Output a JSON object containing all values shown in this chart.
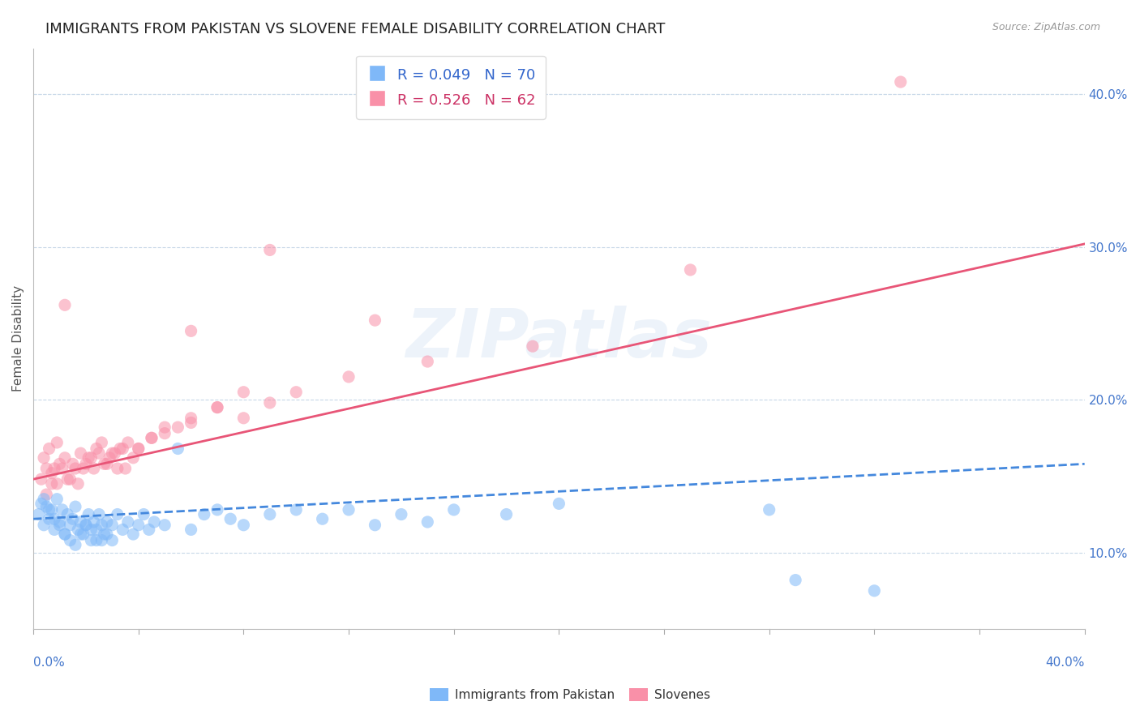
{
  "title": "IMMIGRANTS FROM PAKISTAN VS SLOVENE FEMALE DISABILITY CORRELATION CHART",
  "source": "Source: ZipAtlas.com",
  "ylabel": "Female Disability",
  "xlim": [
    0.0,
    0.4
  ],
  "ylim": [
    0.05,
    0.43
  ],
  "yticks": [
    0.1,
    0.2,
    0.3,
    0.4
  ],
  "ytick_labels": [
    "10.0%",
    "20.0%",
    "30.0%",
    "40.0%"
  ],
  "blue_color": "#7fb8f8",
  "pink_color": "#f990a8",
  "blue_r": 0.049,
  "blue_n": 70,
  "pink_r": 0.526,
  "pink_n": 62,
  "legend_label_blue": "Immigrants from Pakistan",
  "legend_label_pink": "Slovenes",
  "watermark": "ZIPatlas",
  "title_fontsize": 13,
  "axis_label_fontsize": 11,
  "tick_fontsize": 11,
  "blue_scatter_x": [
    0.002,
    0.003,
    0.004,
    0.005,
    0.006,
    0.007,
    0.008,
    0.009,
    0.01,
    0.011,
    0.012,
    0.013,
    0.014,
    0.015,
    0.016,
    0.017,
    0.018,
    0.019,
    0.02,
    0.021,
    0.022,
    0.023,
    0.024,
    0.025,
    0.026,
    0.027,
    0.028,
    0.03,
    0.032,
    0.034,
    0.036,
    0.038,
    0.04,
    0.042,
    0.044,
    0.046,
    0.05,
    0.055,
    0.06,
    0.065,
    0.07,
    0.075,
    0.08,
    0.09,
    0.1,
    0.11,
    0.12,
    0.13,
    0.14,
    0.15,
    0.004,
    0.006,
    0.008,
    0.01,
    0.012,
    0.014,
    0.016,
    0.018,
    0.02,
    0.022,
    0.024,
    0.026,
    0.028,
    0.03,
    0.16,
    0.18,
    0.2,
    0.28,
    0.29,
    0.32
  ],
  "blue_scatter_y": [
    0.125,
    0.132,
    0.118,
    0.13,
    0.122,
    0.128,
    0.115,
    0.135,
    0.12,
    0.128,
    0.112,
    0.125,
    0.118,
    0.122,
    0.13,
    0.115,
    0.12,
    0.112,
    0.118,
    0.125,
    0.115,
    0.12,
    0.108,
    0.125,
    0.118,
    0.112,
    0.12,
    0.118,
    0.125,
    0.115,
    0.12,
    0.112,
    0.118,
    0.125,
    0.115,
    0.12,
    0.118,
    0.168,
    0.115,
    0.125,
    0.128,
    0.122,
    0.118,
    0.125,
    0.128,
    0.122,
    0.128,
    0.118,
    0.125,
    0.12,
    0.135,
    0.128,
    0.122,
    0.118,
    0.112,
    0.108,
    0.105,
    0.112,
    0.118,
    0.108,
    0.115,
    0.108,
    0.112,
    0.108,
    0.128,
    0.125,
    0.132,
    0.128,
    0.082,
    0.075
  ],
  "pink_scatter_x": [
    0.003,
    0.004,
    0.005,
    0.006,
    0.007,
    0.008,
    0.009,
    0.01,
    0.012,
    0.014,
    0.016,
    0.018,
    0.02,
    0.022,
    0.024,
    0.026,
    0.028,
    0.03,
    0.032,
    0.034,
    0.036,
    0.038,
    0.04,
    0.045,
    0.05,
    0.055,
    0.06,
    0.07,
    0.08,
    0.09,
    0.1,
    0.12,
    0.005,
    0.007,
    0.009,
    0.011,
    0.013,
    0.015,
    0.017,
    0.019,
    0.021,
    0.023,
    0.025,
    0.027,
    0.029,
    0.031,
    0.033,
    0.035,
    0.04,
    0.045,
    0.05,
    0.06,
    0.07,
    0.08,
    0.15,
    0.19,
    0.25,
    0.06,
    0.09,
    0.13,
    0.33,
    0.012
  ],
  "pink_scatter_y": [
    0.148,
    0.162,
    0.155,
    0.168,
    0.145,
    0.155,
    0.172,
    0.158,
    0.162,
    0.148,
    0.155,
    0.165,
    0.158,
    0.162,
    0.168,
    0.172,
    0.158,
    0.165,
    0.155,
    0.168,
    0.172,
    0.162,
    0.168,
    0.175,
    0.178,
    0.182,
    0.185,
    0.195,
    0.188,
    0.198,
    0.205,
    0.215,
    0.138,
    0.152,
    0.145,
    0.155,
    0.148,
    0.158,
    0.145,
    0.155,
    0.162,
    0.155,
    0.165,
    0.158,
    0.162,
    0.165,
    0.168,
    0.155,
    0.168,
    0.175,
    0.182,
    0.188,
    0.195,
    0.205,
    0.225,
    0.235,
    0.285,
    0.245,
    0.298,
    0.252,
    0.408,
    0.262
  ],
  "blue_trend_x": [
    0.0,
    0.4
  ],
  "blue_trend_y": [
    0.122,
    0.158
  ],
  "pink_trend_x": [
    0.0,
    0.4
  ],
  "pink_trend_y": [
    0.148,
    0.302
  ]
}
